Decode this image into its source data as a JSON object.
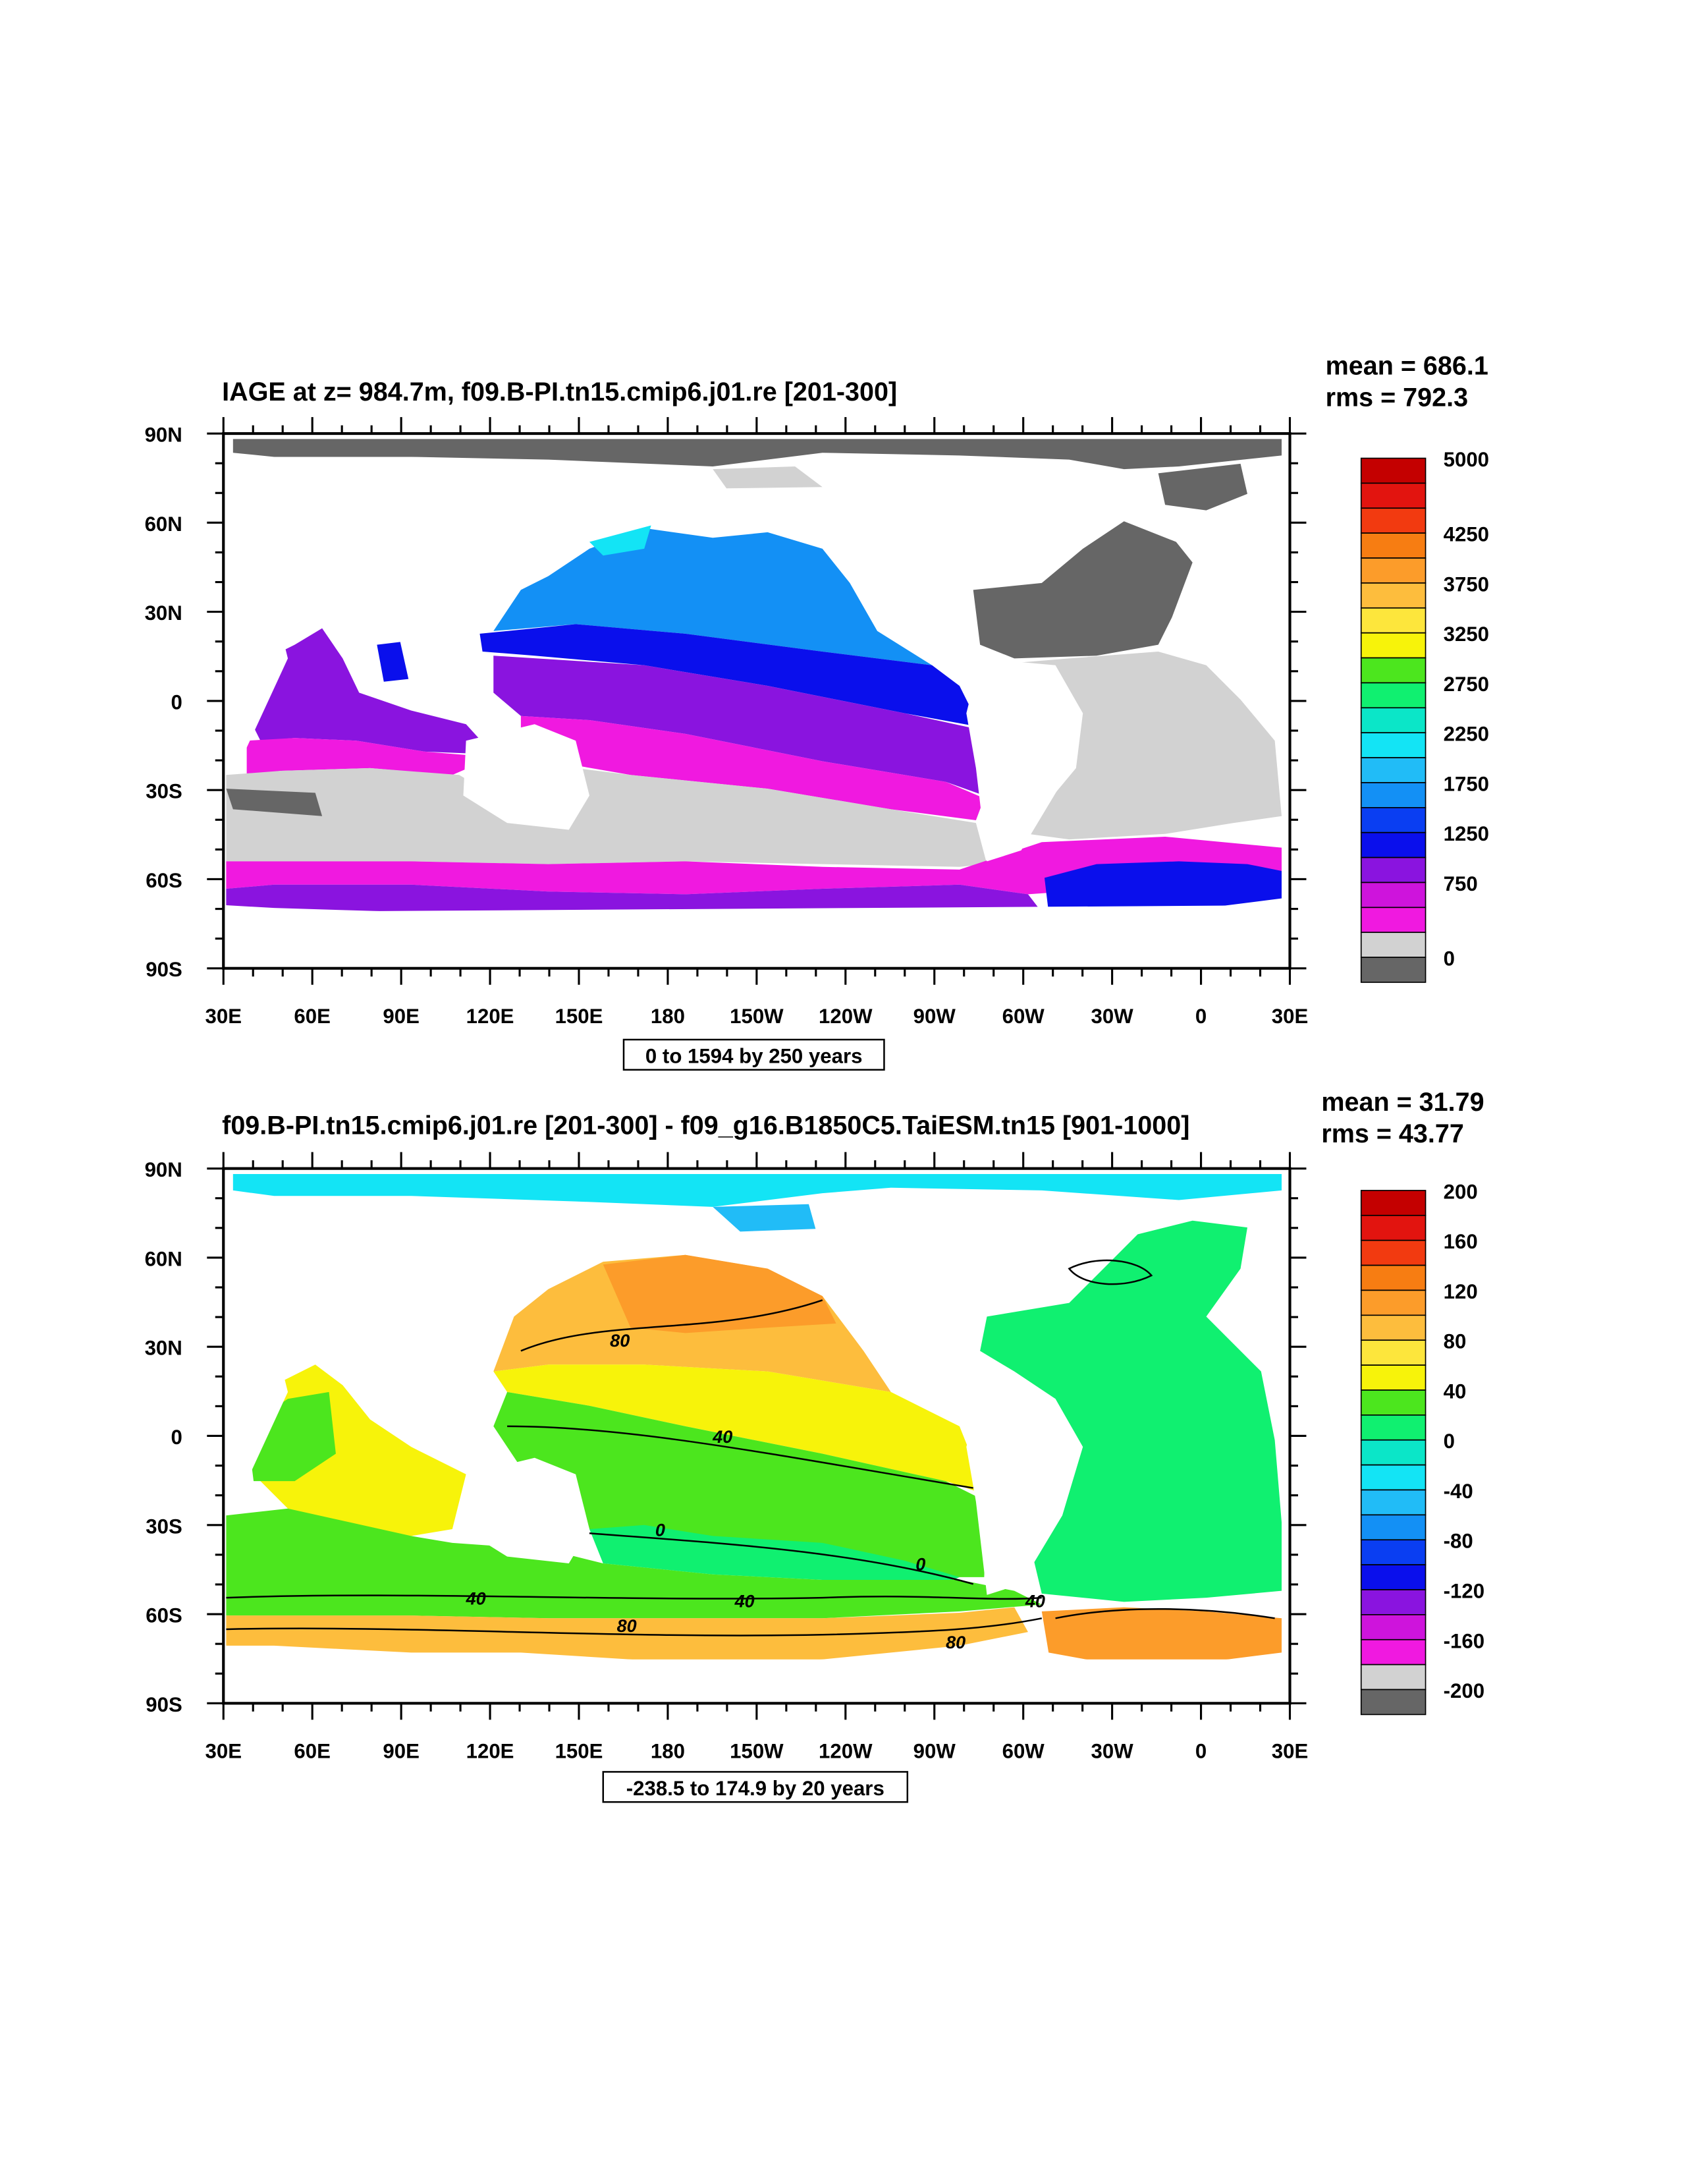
{
  "panels": [
    {
      "title": "IAGE at z= 984.7m, f09.B-PI.tn15.cmip6.j01.re [201-300]",
      "mean": "mean = 686.1",
      "rms": "rms = 792.3",
      "contour_info": "0 to 1594 by 250 years",
      "lat_labels": [
        "90N",
        "60N",
        "30N",
        "0",
        "30S",
        "60S",
        "90S"
      ],
      "lon_labels": [
        "30E",
        "60E",
        "90E",
        "120E",
        "150E",
        "180",
        "150W",
        "120W",
        "90W",
        "60W",
        "30W",
        "0",
        "30E"
      ],
      "colorbar": {
        "colors": [
          "#c40000",
          "#e2140f",
          "#f23a10",
          "#f77d12",
          "#fc9c2a",
          "#fdbd3d",
          "#fde63c",
          "#f7f30a",
          "#4ce61e",
          "#10f070",
          "#0be6c8",
          "#13e4f5",
          "#21bcf7",
          "#1390f5",
          "#0a3ef2",
          "#0a0fec",
          "#8a14df",
          "#ce14dc",
          "#f019e0",
          "#d2d2d2",
          "#666666"
        ],
        "labels": [
          {
            "text": "5000",
            "index": 0
          },
          {
            "text": "4250",
            "index": 3
          },
          {
            "text": "3750",
            "index": 5
          },
          {
            "text": "3250",
            "index": 7
          },
          {
            "text": "2750",
            "index": 9
          },
          {
            "text": "2250",
            "index": 11
          },
          {
            "text": "1750",
            "index": 13
          },
          {
            "text": "1250",
            "index": 15
          },
          {
            "text": "750",
            "index": 17
          },
          {
            "text": "0",
            "index": 20
          }
        ]
      }
    },
    {
      "title": "f09.B-PI.tn15.cmip6.j01.re [201-300] - f09_g16.B1850C5.TaiESM.tn15 [901-1000]",
      "mean": "mean = 31.79",
      "rms": "rms = 43.77",
      "contour_info": "-238.5 to 174.9 by 20 years",
      "lat_labels": [
        "90N",
        "60N",
        "30N",
        "0",
        "30S",
        "60S",
        "90S"
      ],
      "lon_labels": [
        "30E",
        "60E",
        "90E",
        "120E",
        "150E",
        "180",
        "150W",
        "120W",
        "90W",
        "60W",
        "30W",
        "0",
        "30E"
      ],
      "contour_labels": [
        "80",
        "40",
        "0",
        "0",
        "40",
        "80",
        "40",
        "80",
        "40"
      ],
      "colorbar": {
        "colors": [
          "#c40000",
          "#e2140f",
          "#f23a10",
          "#f77d12",
          "#fc9c2a",
          "#fdbd3d",
          "#fde63c",
          "#f7f30a",
          "#4ce61e",
          "#10f070",
          "#0be6c8",
          "#13e4f5",
          "#21bcf7",
          "#1390f5",
          "#0a3ef2",
          "#0a0fec",
          "#8a14df",
          "#ce14dc",
          "#f019e0",
          "#d2d2d2",
          "#666666"
        ],
        "labels": [
          {
            "text": "200",
            "index": 0
          },
          {
            "text": "160",
            "index": 2
          },
          {
            "text": "120",
            "index": 4
          },
          {
            "text": "80",
            "index": 6
          },
          {
            "text": "40",
            "index": 8
          },
          {
            "text": "0",
            "index": 10
          },
          {
            "text": "-40",
            "index": 12
          },
          {
            "text": "-80",
            "index": 14
          },
          {
            "text": "-120",
            "index": 16
          },
          {
            "text": "-160",
            "index": 18
          },
          {
            "text": "-200",
            "index": 20
          }
        ]
      }
    }
  ]
}
